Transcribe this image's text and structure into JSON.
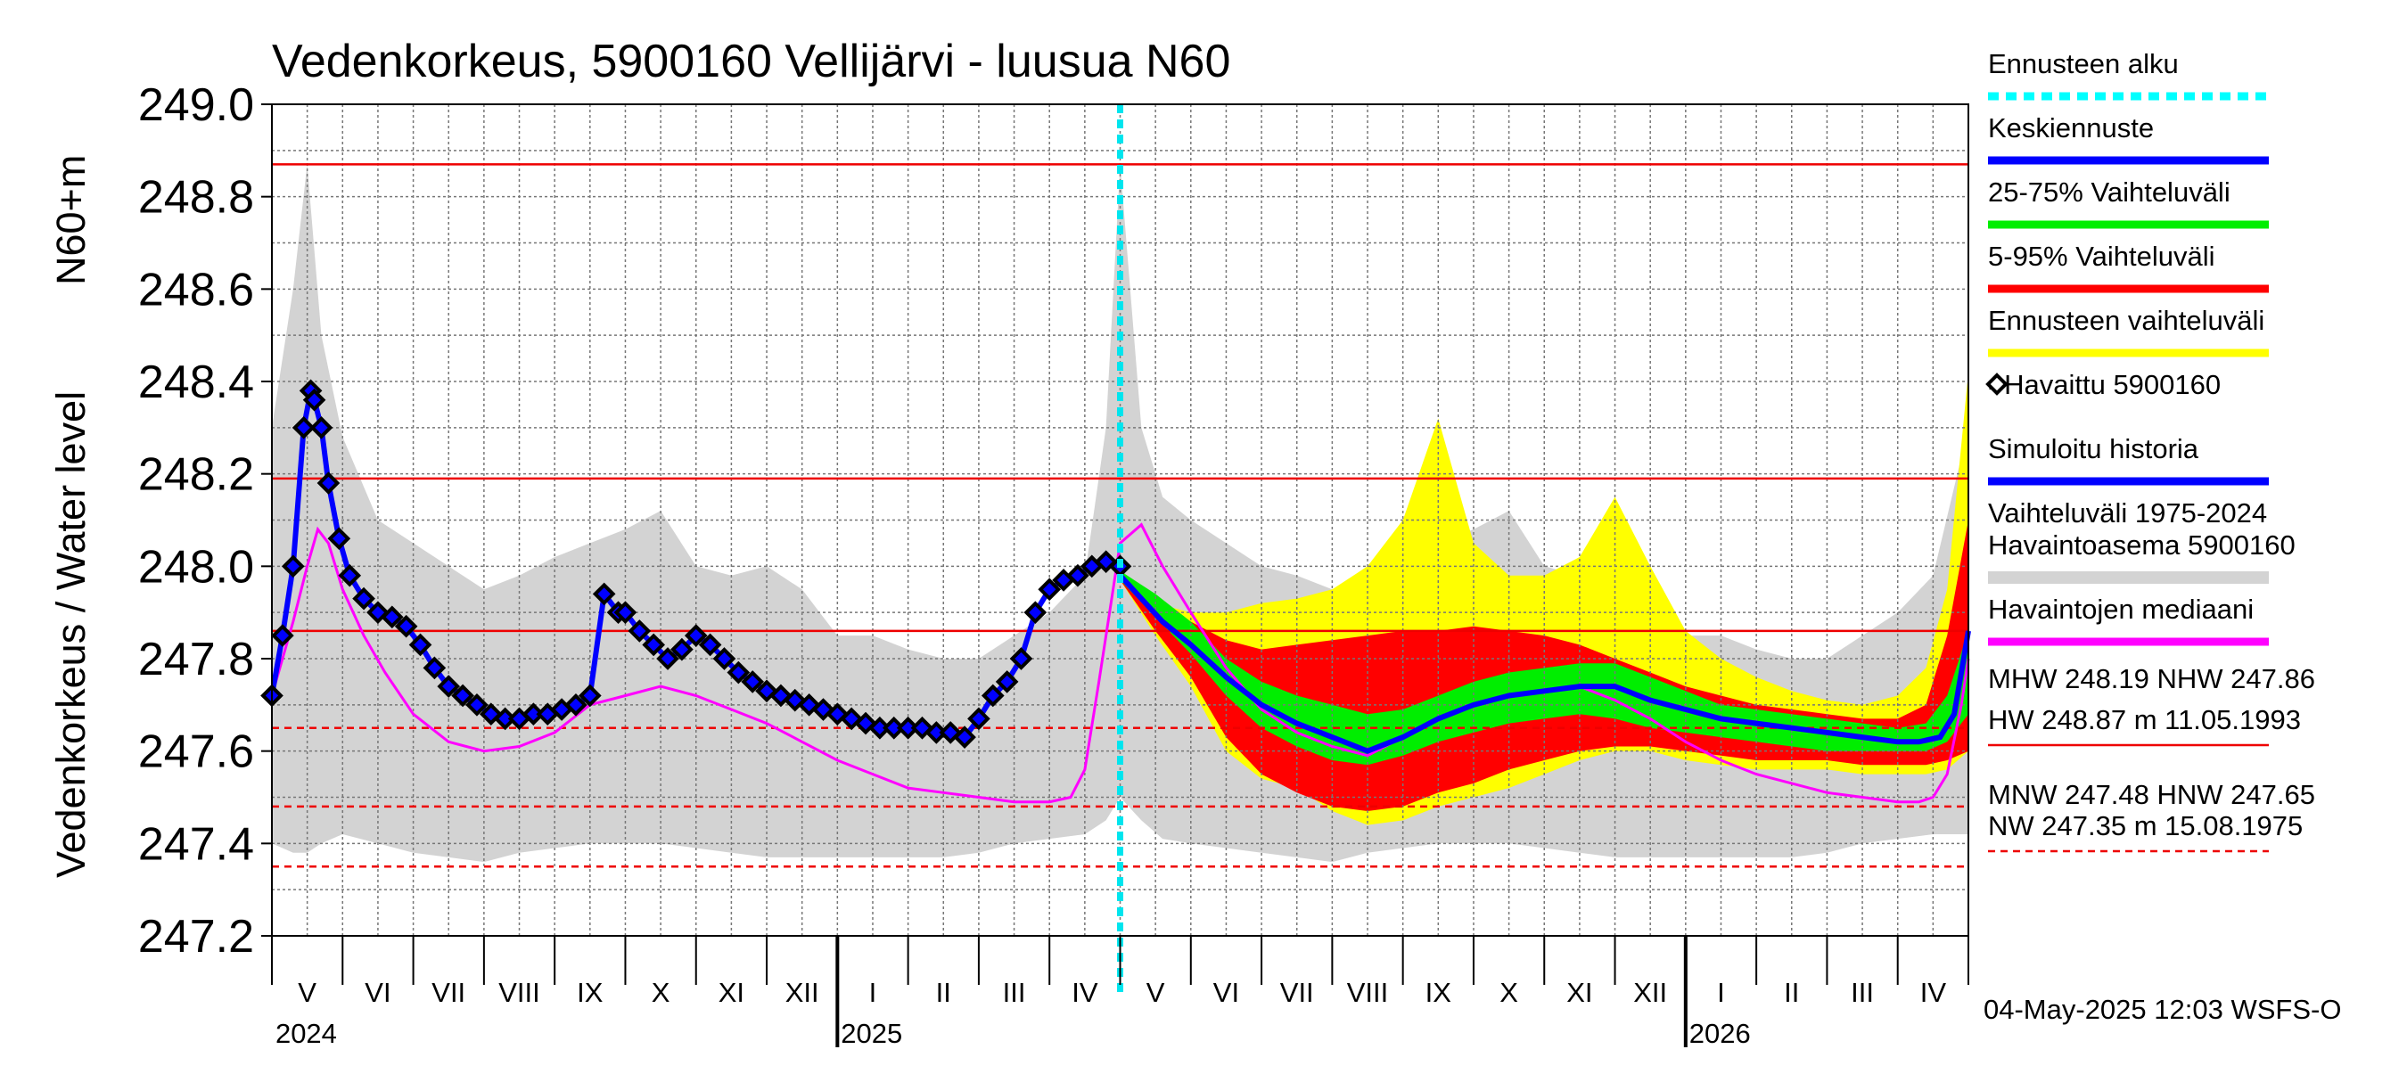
{
  "chart_data": {
    "type": "line",
    "title": "Vedenkorkeus, 5900160 Vellijärvi - luusua N60",
    "ylabel_top": "N60+m",
    "ylabel": "Vedenkorkeus / Water level",
    "ylim": [
      247.2,
      249.0
    ],
    "yticks": [
      "247.2",
      "247.4",
      "247.6",
      "247.8",
      "248.0",
      "248.2",
      "248.4",
      "248.6",
      "248.8",
      "249.0"
    ],
    "grid": true,
    "months": [
      "V",
      "VI",
      "VII",
      "VIII",
      "IX",
      "X",
      "XI",
      "XII",
      "I",
      "II",
      "III",
      "IV",
      "V",
      "VI",
      "VII",
      "VIII",
      "IX",
      "X",
      "XI",
      "XII",
      "I",
      "II",
      "III",
      "IV"
    ],
    "years": [
      "2024",
      "2025",
      "2026"
    ],
    "forecast_start_index": 12,
    "reference_levels": [
      {
        "name": "HW",
        "value": 248.87
      },
      {
        "name": "MHW",
        "value": 248.19
      },
      {
        "name": "NHW",
        "value": 247.86
      },
      {
        "name": "HNW",
        "value": 247.65
      },
      {
        "name": "MNW",
        "value": 247.48
      },
      {
        "name": "NW",
        "value": 247.35
      }
    ],
    "series": [
      {
        "name": "=Havaittu 5900160",
        "kind": "observed",
        "x": [
          0.0,
          0.15,
          0.3,
          0.45,
          0.55,
          0.6,
          0.7,
          0.8,
          0.95,
          1.1,
          1.3,
          1.5,
          1.7,
          1.9,
          2.1,
          2.3,
          2.5,
          2.7,
          2.9,
          3.1,
          3.3,
          3.5,
          3.7,
          3.9,
          4.1,
          4.3,
          4.5,
          4.7,
          4.9,
          5.0,
          5.2,
          5.4,
          5.6,
          5.8,
          6.0,
          6.2,
          6.4,
          6.6,
          6.8,
          7.0,
          7.2,
          7.4,
          7.6,
          7.8,
          8.0,
          8.2,
          8.4,
          8.6,
          8.8,
          9.0,
          9.2,
          9.4,
          9.6,
          9.8,
          10.0,
          10.2,
          10.4,
          10.6,
          10.8,
          11.0,
          11.2,
          11.4,
          11.6,
          11.8,
          12.0
        ],
        "y": [
          247.72,
          247.85,
          248.0,
          248.3,
          248.38,
          248.36,
          248.3,
          248.18,
          248.06,
          247.98,
          247.93,
          247.9,
          247.89,
          247.87,
          247.83,
          247.78,
          247.74,
          247.72,
          247.7,
          247.68,
          247.67,
          247.67,
          247.68,
          247.68,
          247.69,
          247.7,
          247.72,
          247.94,
          247.9,
          247.9,
          247.86,
          247.83,
          247.8,
          247.82,
          247.85,
          247.83,
          247.8,
          247.77,
          247.75,
          247.73,
          247.72,
          247.71,
          247.7,
          247.69,
          247.68,
          247.67,
          247.66,
          247.65,
          247.65,
          247.65,
          247.65,
          247.64,
          247.64,
          247.63,
          247.67,
          247.72,
          247.75,
          247.8,
          247.9,
          247.95,
          247.97,
          247.98,
          248.0,
          248.01,
          248.0
        ]
      },
      {
        "name": "Keskiennuste",
        "kind": "median-forecast",
        "x": [
          12.0,
          12.3,
          12.6,
          13.0,
          13.5,
          14.0,
          14.5,
          15.0,
          15.5,
          16.0,
          16.5,
          17.0,
          17.5,
          18.0,
          18.5,
          19.0,
          19.5,
          20.0,
          20.5,
          21.0,
          21.5,
          22.0,
          22.5,
          23.0,
          23.3,
          23.6,
          23.8,
          24.0
        ],
        "y": [
          247.98,
          247.93,
          247.88,
          247.83,
          247.76,
          247.7,
          247.66,
          247.63,
          247.6,
          247.63,
          247.67,
          247.7,
          247.72,
          247.73,
          247.74,
          247.74,
          247.71,
          247.69,
          247.67,
          247.66,
          247.65,
          247.64,
          247.63,
          247.62,
          247.62,
          247.63,
          247.68,
          247.86
        ]
      },
      {
        "name": "Havaintojen mediaani",
        "kind": "observed-median",
        "x": [
          0.0,
          0.3,
          0.5,
          0.65,
          0.8,
          1.0,
          1.3,
          1.6,
          2.0,
          2.5,
          3.0,
          3.5,
          4.0,
          4.5,
          5.0,
          5.5,
          6.0,
          6.5,
          7.0,
          7.5,
          8.0,
          8.5,
          9.0,
          9.5,
          10.0,
          10.5,
          11.0,
          11.3,
          11.5,
          11.7,
          11.9,
          12.0,
          12.3,
          12.6,
          13.0,
          13.5,
          14.0,
          14.5,
          15.0,
          15.5,
          16.0,
          16.5,
          17.0,
          17.5,
          18.0,
          18.5,
          19.0,
          19.5,
          20.0,
          20.5,
          21.0,
          21.5,
          22.0,
          22.5,
          23.0,
          23.3,
          23.5,
          23.7,
          23.9,
          24.0
        ],
        "y": [
          247.72,
          247.88,
          248.0,
          248.08,
          248.05,
          247.95,
          247.85,
          247.77,
          247.68,
          247.62,
          247.6,
          247.61,
          247.64,
          247.7,
          247.72,
          247.74,
          247.72,
          247.69,
          247.66,
          247.62,
          247.58,
          247.55,
          247.52,
          247.51,
          247.5,
          247.49,
          247.49,
          247.5,
          247.56,
          247.75,
          247.95,
          248.05,
          248.09,
          248.0,
          247.9,
          247.78,
          247.69,
          247.64,
          247.61,
          247.59,
          247.63,
          247.67,
          247.7,
          247.72,
          247.73,
          247.74,
          247.71,
          247.67,
          247.62,
          247.58,
          247.55,
          247.53,
          247.51,
          247.5,
          247.49,
          247.49,
          247.5,
          247.55,
          247.7,
          247.8
        ]
      }
    ],
    "bands": [
      {
        "name": "Ennusteen vaihteluväli",
        "color": "#ffff00",
        "x": [
          12.0,
          12.5,
          13.0,
          13.5,
          14.0,
          14.5,
          15.0,
          15.5,
          16.0,
          16.5,
          17.0,
          17.5,
          18.0,
          18.5,
          19.0,
          19.5,
          20.0,
          20.5,
          21.0,
          21.5,
          22.0,
          22.5,
          23.0,
          23.4,
          23.7,
          24.0
        ],
        "low": [
          247.97,
          247.85,
          247.74,
          247.6,
          247.54,
          247.52,
          247.47,
          247.44,
          247.45,
          247.48,
          247.5,
          247.52,
          247.55,
          247.58,
          247.6,
          247.6,
          247.58,
          247.57,
          247.56,
          247.56,
          247.56,
          247.55,
          247.55,
          247.55,
          247.56,
          247.6
        ],
        "high": [
          247.99,
          247.92,
          247.9,
          247.9,
          247.92,
          247.93,
          247.95,
          248.0,
          248.1,
          248.32,
          248.05,
          247.98,
          247.98,
          248.02,
          248.15,
          248.0,
          247.86,
          247.8,
          247.76,
          247.73,
          247.71,
          247.7,
          247.72,
          247.78,
          247.95,
          248.42
        ]
      },
      {
        "name": "5-95% Vaihteluväli",
        "color": "#ff0000",
        "x": [
          12.0,
          12.5,
          13.0,
          13.5,
          14.0,
          14.5,
          15.0,
          15.5,
          16.0,
          16.5,
          17.0,
          17.5,
          18.0,
          18.5,
          19.0,
          19.5,
          20.0,
          20.5,
          21.0,
          21.5,
          22.0,
          22.5,
          23.0,
          23.4,
          23.7,
          24.0
        ],
        "low": [
          247.97,
          247.86,
          247.76,
          247.63,
          247.55,
          247.51,
          247.48,
          247.47,
          247.48,
          247.51,
          247.53,
          247.56,
          247.58,
          247.6,
          247.61,
          247.61,
          247.6,
          247.59,
          247.58,
          247.58,
          247.58,
          247.57,
          247.57,
          247.57,
          247.58,
          247.6
        ],
        "high": [
          247.99,
          247.92,
          247.88,
          247.84,
          247.82,
          247.83,
          247.84,
          247.85,
          247.86,
          247.86,
          247.87,
          247.86,
          247.85,
          247.83,
          247.8,
          247.77,
          247.74,
          247.72,
          247.7,
          247.69,
          247.68,
          247.67,
          247.67,
          247.7,
          247.85,
          248.1
        ]
      },
      {
        "name": "25-75% Vaihteluväli",
        "color": "#00ee00",
        "x": [
          12.0,
          12.5,
          13.0,
          13.5,
          14.0,
          14.5,
          15.0,
          15.5,
          16.0,
          16.5,
          17.0,
          17.5,
          18.0,
          18.5,
          19.0,
          19.5,
          20.0,
          20.5,
          21.0,
          21.5,
          22.0,
          22.5,
          23.0,
          23.4,
          23.7,
          24.0
        ],
        "low": [
          247.97,
          247.89,
          247.81,
          247.72,
          247.65,
          247.61,
          247.58,
          247.57,
          247.59,
          247.62,
          247.64,
          247.66,
          247.67,
          247.68,
          247.67,
          247.65,
          247.64,
          247.63,
          247.62,
          247.61,
          247.6,
          247.6,
          247.6,
          247.6,
          247.62,
          247.68
        ],
        "high": [
          247.99,
          247.94,
          247.88,
          247.8,
          247.75,
          247.72,
          247.7,
          247.68,
          247.69,
          247.72,
          247.75,
          247.77,
          247.78,
          247.79,
          247.79,
          247.76,
          247.73,
          247.7,
          247.69,
          247.68,
          247.67,
          247.66,
          247.65,
          247.66,
          247.72,
          247.86
        ]
      },
      {
        "name": "Vaihteluväli 1975-2024 Havaintoasema 5900160",
        "color": "#d3d3d3",
        "x": [
          0.0,
          0.3,
          0.5,
          0.7,
          1.0,
          1.5,
          2.0,
          2.5,
          3.0,
          3.5,
          4.0,
          4.5,
          5.0,
          5.5,
          6.0,
          6.5,
          7.0,
          7.5,
          8.0,
          8.5,
          9.0,
          9.5,
          10.0,
          10.5,
          11.0,
          11.5,
          11.8,
          12.0,
          12.3,
          12.6,
          13.0,
          13.5,
          14.0,
          14.5,
          15.0,
          15.5,
          16.0,
          16.5,
          17.0,
          17.5,
          18.0,
          18.5,
          19.0,
          19.5,
          20.0,
          20.5,
          21.0,
          21.5,
          22.0,
          22.5,
          23.0,
          23.5,
          24.0
        ],
        "low": [
          247.4,
          247.38,
          247.38,
          247.4,
          247.42,
          247.4,
          247.38,
          247.37,
          247.36,
          247.38,
          247.39,
          247.4,
          247.4,
          247.4,
          247.39,
          247.38,
          247.37,
          247.37,
          247.37,
          247.37,
          247.37,
          247.37,
          247.38,
          247.4,
          247.41,
          247.42,
          247.45,
          247.5,
          247.45,
          247.41,
          247.4,
          247.39,
          247.38,
          247.37,
          247.36,
          247.38,
          247.39,
          247.4,
          247.4,
          247.4,
          247.39,
          247.38,
          247.37,
          247.37,
          247.37,
          247.37,
          247.37,
          247.37,
          247.38,
          247.4,
          247.41,
          247.42,
          247.42
        ],
        "high": [
          248.3,
          248.6,
          248.87,
          248.5,
          248.28,
          248.1,
          248.05,
          248.0,
          247.95,
          247.98,
          248.02,
          248.05,
          248.08,
          248.12,
          248.0,
          247.98,
          248.0,
          247.95,
          247.85,
          247.85,
          247.82,
          247.8,
          247.8,
          247.85,
          247.9,
          247.98,
          248.3,
          248.87,
          248.3,
          248.15,
          248.1,
          248.05,
          248.0,
          247.98,
          247.95,
          247.98,
          248.02,
          248.05,
          248.08,
          248.12,
          248.0,
          247.98,
          248.0,
          247.95,
          247.85,
          247.85,
          247.82,
          247.8,
          247.8,
          247.85,
          247.9,
          247.98,
          248.3
        ]
      }
    ],
    "legend": [
      {
        "label": "Ennusteen alku",
        "color": "#00ffff",
        "style": "dotted"
      },
      {
        "label": "Keskiennuste",
        "color": "#0000ff",
        "style": "solid"
      },
      {
        "label": "25-75% Vaihteluväli",
        "color": "#00ee00",
        "style": "solid"
      },
      {
        "label": "5-95% Vaihteluväli",
        "color": "#ff0000",
        "style": "solid"
      },
      {
        "label": "Ennusteen vaihteluväli",
        "color": "#ffff00",
        "style": "solid"
      },
      {
        "label": "=Havaittu 5900160",
        "color": "#000000",
        "style": "marker"
      },
      {
        "label": "Simuloitu historia",
        "color": "#0000ff",
        "style": "solid"
      },
      {
        "label": "Vaihteluväli 1975-2024\n Havaintoasema 5900160",
        "color": "#d3d3d3",
        "style": "solid"
      },
      {
        "label": "Havaintojen mediaani",
        "color": "#ff00ff",
        "style": "solid"
      }
    ],
    "stats": [
      {
        "text": "MHW 248.19 NHW 247.86",
        "line": "none"
      },
      {
        "text": "HW 248.87 m 11.05.1993",
        "line": "solid"
      },
      {
        "text": "MNW 247.48 HNW 247.65",
        "line": "none"
      },
      {
        "text": "NW 247.35 m 15.08.1975",
        "line": "dashed"
      }
    ],
    "footer": "04-May-2025 12:03 WSFS-O"
  }
}
